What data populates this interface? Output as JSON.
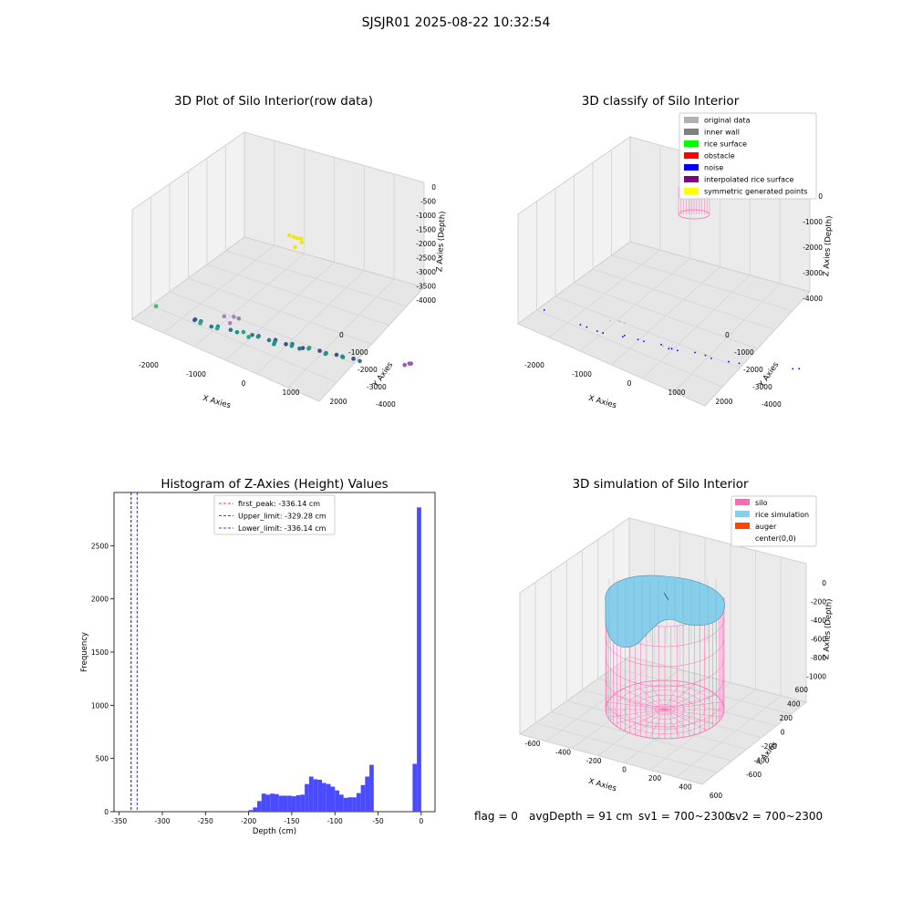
{
  "figure": {
    "suptitle": "SJSJR01 2025-08-22 10:32:54",
    "footer": {
      "flag": "flag = 0",
      "avg_depth": "avgDepth = 91 cm",
      "sv1": "sv1 = 700~2300",
      "sv2": "sv2 = 700~2300"
    }
  },
  "colors": {
    "hist_bar": "#4a4aff",
    "first_peak_line": "#ff0000",
    "limit_line": "#0000cc",
    "silo_mesh": "#ff69b4",
    "rice_surface": "#87ceeb",
    "auger": "#ff4500",
    "pane_fill": "#f2f2f2"
  },
  "chart_data": [
    {
      "type": "scatter",
      "title": "3D Plot of Silo Interior(row data)",
      "xlabel": "X Axies",
      "ylabel": "Y Axies",
      "zlabel": "Z Axies (Depth)",
      "x_ticks": [
        "-2000",
        "-1000",
        "0",
        "1000",
        "2000"
      ],
      "y_ticks": [
        "0",
        "-1000",
        "-2000",
        "-3000",
        "-4000"
      ],
      "z_ticks": [
        "0",
        "-500",
        "-1000",
        "-1500",
        "-2000",
        "-2500",
        "-3000",
        "-3500",
        "-4000"
      ],
      "xlim": [
        -2300,
        2300
      ],
      "ylim": [
        -4300,
        300
      ],
      "zlim": [
        -4200,
        200
      ],
      "points": [
        {
          "x": 0,
          "y": -2600,
          "z": -50,
          "c": "#f2e51c"
        },
        {
          "x": 50,
          "y": -2650,
          "z": -80,
          "c": "#f2e51c"
        },
        {
          "x": 120,
          "y": -2700,
          "z": -60,
          "c": "#f2e51c"
        },
        {
          "x": -80,
          "y": -2550,
          "z": -30,
          "c": "#f2e51c"
        },
        {
          "x": 200,
          "y": -2600,
          "z": -120,
          "c": "#f2e51c"
        },
        {
          "x": -20,
          "y": -2700,
          "z": -500,
          "c": "#f2e51c"
        },
        {
          "x": -2000,
          "y": -200,
          "z": -3600,
          "c": "#3dbc74"
        },
        {
          "x": -900,
          "y": -1200,
          "z": -3500,
          "c": "#aa7fc4"
        },
        {
          "x": -750,
          "y": -1350,
          "z": -3450,
          "c": "#aa7fc4"
        },
        {
          "x": -700,
          "y": -1100,
          "z": -3600,
          "c": "#aa7fc4"
        },
        {
          "x": -600,
          "y": -1300,
          "z": -3400,
          "c": "#888888"
        },
        {
          "x": 2100,
          "y": -3700,
          "z": -4000,
          "c": "#9b59b6"
        },
        {
          "x": 2100,
          "y": -3900,
          "z": -4000,
          "c": "#9b59b6"
        },
        {
          "x": 2200,
          "y": -3800,
          "z": -3900,
          "c": "#9b59b6"
        },
        {
          "x": -1400,
          "y": -800,
          "z": -3900,
          "c": "#2a788e"
        },
        {
          "x": -1300,
          "y": -900,
          "z": -3900,
          "c": "#21918c"
        },
        {
          "x": -1200,
          "y": -700,
          "z": -3850,
          "c": "#22a884"
        },
        {
          "x": -1100,
          "y": -1000,
          "z": -4000,
          "c": "#2a788e"
        },
        {
          "x": -1000,
          "y": -1100,
          "z": -3950,
          "c": "#21918c"
        },
        {
          "x": -900,
          "y": -900,
          "z": -3900,
          "c": "#22a884"
        },
        {
          "x": -800,
          "y": -1300,
          "z": -4000,
          "c": "#2a788e"
        },
        {
          "x": -700,
          "y": -1400,
          "z": -4050,
          "c": "#21918c"
        },
        {
          "x": -600,
          "y": -1500,
          "z": -4000,
          "c": "#22a884"
        },
        {
          "x": -500,
          "y": -1700,
          "z": -4100,
          "c": "#2a788e"
        },
        {
          "x": -400,
          "y": -1800,
          "z": -4100,
          "c": "#3b528b"
        },
        {
          "x": -300,
          "y": -1600,
          "z": -4000,
          "c": "#21918c"
        },
        {
          "x": -200,
          "y": -1900,
          "z": -4150,
          "c": "#2a788e"
        },
        {
          "x": -100,
          "y": -2000,
          "z": -4100,
          "c": "#3b528b"
        },
        {
          "x": 0,
          "y": -1800,
          "z": -4050,
          "c": "#21918c"
        },
        {
          "x": 100,
          "y": -2100,
          "z": -4150,
          "c": "#3b528b"
        },
        {
          "x": 200,
          "y": -2200,
          "z": -4100,
          "c": "#2a788e"
        },
        {
          "x": 300,
          "y": -2000,
          "z": -4050,
          "c": "#21918c"
        },
        {
          "x": 400,
          "y": -2300,
          "z": -4150,
          "c": "#3b528b"
        },
        {
          "x": 500,
          "y": -2400,
          "z": -4100,
          "c": "#2a788e"
        },
        {
          "x": 600,
          "y": -2200,
          "z": -4000,
          "c": "#22a884"
        },
        {
          "x": 700,
          "y": -2500,
          "z": -4100,
          "c": "#3b528b"
        },
        {
          "x": 800,
          "y": -2600,
          "z": -4150,
          "c": "#2a788e"
        },
        {
          "x": 900,
          "y": -2400,
          "z": -4050,
          "c": "#21918c"
        },
        {
          "x": 1000,
          "y": -2700,
          "z": -4100,
          "c": "#3b528b"
        },
        {
          "x": 1100,
          "y": -2800,
          "z": -4150,
          "c": "#2a788e"
        },
        {
          "x": 1200,
          "y": -2600,
          "z": -4000,
          "c": "#21918c"
        },
        {
          "x": 1300,
          "y": -2900,
          "z": -4100,
          "c": "#3b528b"
        },
        {
          "x": 1400,
          "y": -3000,
          "z": -4150,
          "c": "#2a788e"
        },
        {
          "x": -1500,
          "y": -1000,
          "z": -4000,
          "c": "#3b528b"
        },
        {
          "x": -300,
          "y": -1200,
          "z": -3900,
          "c": "#22a884"
        },
        {
          "x": 150,
          "y": -1500,
          "z": -3950,
          "c": "#21918c"
        },
        {
          "x": 550,
          "y": -1900,
          "z": -3950,
          "c": "#2a788e"
        }
      ]
    },
    {
      "type": "scatter",
      "title": "3D classify of Silo Interior",
      "xlabel": "X Axies",
      "ylabel": "Y Axies",
      "zlabel": "Z Axies (Depth)",
      "x_ticks": [
        "-2000",
        "-1000",
        "0",
        "1000",
        "2000"
      ],
      "y_ticks": [
        "0",
        "-1000",
        "-2000",
        "-3000",
        "-4000"
      ],
      "z_ticks": [
        "0",
        "-1000",
        "-2000",
        "-3000",
        "-4000"
      ],
      "xlim": [
        -2300,
        2300
      ],
      "ylim": [
        -4300,
        300
      ],
      "zlim": [
        -4200,
        200
      ],
      "legend": {
        "placement": "top-right",
        "entries": [
          {
            "label": "original data",
            "color": "#b0b0b0"
          },
          {
            "label": "inner wall",
            "color": "#808080"
          },
          {
            "label": "rice surface",
            "color": "#00ff00"
          },
          {
            "label": "obstacle",
            "color": "#ff0000"
          },
          {
            "label": "noise",
            "color": "#0000ff"
          },
          {
            "label": "interpolated rice surface",
            "color": "#800080"
          },
          {
            "label": "symmetric generated points",
            "color": "#ffff00"
          }
        ]
      },
      "noise_points": [
        {
          "x": -2000,
          "y": -300,
          "z": -3600
        },
        {
          "x": -1400,
          "y": -800,
          "z": -3900
        },
        {
          "x": -1300,
          "y": -900,
          "z": -3950
        },
        {
          "x": -1100,
          "y": -1000,
          "z": -4000
        },
        {
          "x": -900,
          "y": -900,
          "z": -3900
        },
        {
          "x": -700,
          "y": -1400,
          "z": -4050
        },
        {
          "x": -500,
          "y": -1700,
          "z": -4100
        },
        {
          "x": -300,
          "y": -1600,
          "z": -4000
        },
        {
          "x": -100,
          "y": -2000,
          "z": -4100
        },
        {
          "x": 100,
          "y": -2100,
          "z": -4150
        },
        {
          "x": 300,
          "y": -2000,
          "z": -4050
        },
        {
          "x": 500,
          "y": -2400,
          "z": -4100
        },
        {
          "x": 700,
          "y": -2500,
          "z": -4100
        },
        {
          "x": 900,
          "y": -2400,
          "z": -4050
        },
        {
          "x": 1100,
          "y": -2800,
          "z": -4150
        },
        {
          "x": 1300,
          "y": -2900,
          "z": -4100
        },
        {
          "x": 2100,
          "y": -3800,
          "z": -4000
        },
        {
          "x": 2200,
          "y": -3900,
          "z": -3950
        },
        {
          "x": -600,
          "y": -1300,
          "z": -3900
        },
        {
          "x": 200,
          "y": -1800,
          "z": -4000
        }
      ],
      "original_points": [
        {
          "x": -900,
          "y": -1200,
          "z": -3500
        },
        {
          "x": -750,
          "y": -1350,
          "z": -3450
        },
        {
          "x": -600,
          "y": -1300,
          "z": -3400
        },
        {
          "x": 0,
          "y": -1900,
          "z": -4050
        },
        {
          "x": 100,
          "y": -2000,
          "z": -4050
        }
      ]
    },
    {
      "type": "bar",
      "title": "Histogram of Z-Axies (Height) Values",
      "xlabel": "Depth (cm)",
      "ylabel": "Frequency",
      "xlim": [
        -356,
        16
      ],
      "ylim": [
        0,
        3000
      ],
      "x_ticks": [
        "-350",
        "-300",
        "-250",
        "-200",
        "-150",
        "-100",
        "-50",
        "0"
      ],
      "y_ticks": [
        "0",
        "500",
        "1000",
        "1500",
        "2000",
        "2500"
      ],
      "bin_width": 5,
      "bins": [
        {
          "x0": -205,
          "count": 5
        },
        {
          "x0": -200,
          "count": 15
        },
        {
          "x0": -195,
          "count": 40
        },
        {
          "x0": -190,
          "count": 100
        },
        {
          "x0": -185,
          "count": 170
        },
        {
          "x0": -180,
          "count": 160
        },
        {
          "x0": -175,
          "count": 170
        },
        {
          "x0": -170,
          "count": 165
        },
        {
          "x0": -165,
          "count": 150
        },
        {
          "x0": -160,
          "count": 150
        },
        {
          "x0": -155,
          "count": 150
        },
        {
          "x0": -150,
          "count": 145
        },
        {
          "x0": -145,
          "count": 155
        },
        {
          "x0": -140,
          "count": 160
        },
        {
          "x0": -135,
          "count": 260
        },
        {
          "x0": -130,
          "count": 330
        },
        {
          "x0": -125,
          "count": 305
        },
        {
          "x0": -120,
          "count": 300
        },
        {
          "x0": -115,
          "count": 270
        },
        {
          "x0": -110,
          "count": 260
        },
        {
          "x0": -105,
          "count": 235
        },
        {
          "x0": -100,
          "count": 200
        },
        {
          "x0": -95,
          "count": 160
        },
        {
          "x0": -90,
          "count": 130
        },
        {
          "x0": -85,
          "count": 135
        },
        {
          "x0": -80,
          "count": 135
        },
        {
          "x0": -75,
          "count": 175
        },
        {
          "x0": -70,
          "count": 250
        },
        {
          "x0": -65,
          "count": 330
        },
        {
          "x0": -60,
          "count": 440
        },
        {
          "x0": -5,
          "count": 2860
        },
        {
          "x0": -10,
          "count": 450
        }
      ],
      "lines": [
        {
          "label": "first_peak: -336.14 cm",
          "x": -336.14,
          "color": "#ff0000"
        },
        {
          "label": "Upper_limit: -329.28 cm",
          "x": -329.28,
          "color": "#0000cc"
        },
        {
          "label": "Lower_limit: -336.14 cm",
          "x": -336.14,
          "color": "#0000cc"
        }
      ]
    },
    {
      "type": "other",
      "title": "3D simulation of Silo Interior",
      "xlabel": "X Axies",
      "ylabel": "Y Axies",
      "zlabel": "Z Axies (Depth)",
      "x_ticks": [
        "-600",
        "-400",
        "-200",
        "0",
        "200",
        "400",
        "600"
      ],
      "y_ticks": [
        "-600",
        "-400",
        "-200",
        "0",
        "200",
        "400",
        "600"
      ],
      "z_ticks": [
        "0",
        "-200",
        "-400",
        "-600",
        "-800",
        "-1000"
      ],
      "legend": {
        "placement": "top-right",
        "entries": [
          {
            "label": "silo",
            "color": "#ff69b4"
          },
          {
            "label": "rice simulation",
            "color": "#87ceeb"
          },
          {
            "label": "auger",
            "color": "#ff4500"
          },
          {
            "label": "center(0,0)",
            "color": ""
          }
        ]
      }
    }
  ]
}
